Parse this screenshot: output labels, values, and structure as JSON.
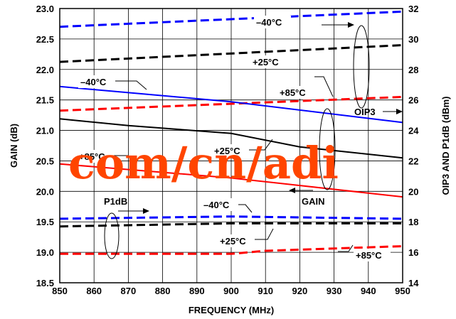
{
  "chart_data": {
    "type": "line",
    "xlabel": "FREQUENCY (MHz)",
    "ylabel": "GAIN (dB)",
    "y2label": "OIP3 AND P1dB (dBm)",
    "xlim": [
      850,
      950
    ],
    "ylim": [
      18.5,
      23.0
    ],
    "y2lim": [
      14,
      32
    ],
    "xticks": [
      "850",
      "860",
      "870",
      "880",
      "890",
      "900",
      "910",
      "920",
      "930",
      "940",
      "950"
    ],
    "yticks": [
      "18.5",
      "19.0",
      "19.5",
      "20.0",
      "20.5",
      "21.0",
      "21.5",
      "22.0",
      "22.5",
      "23.0"
    ],
    "y2ticks": [
      "14",
      "16",
      "18",
      "20",
      "22",
      "24",
      "26",
      "28",
      "30",
      "32"
    ],
    "grid": true,
    "colors": {
      "cold": "#0000ff",
      "room": "#000000",
      "hot": "#ff0000",
      "watermark": "#ff4500"
    },
    "series": [
      {
        "group": "OIP3",
        "axis": "right",
        "temp": "-40°C",
        "style": "dashed",
        "color": "#0000ff",
        "x": [
          850,
          950
        ],
        "values": [
          30.8,
          31.8
        ]
      },
      {
        "group": "OIP3",
        "axis": "right",
        "temp": "+25°C",
        "style": "dashed",
        "color": "#000000",
        "x": [
          850,
          950
        ],
        "values": [
          28.5,
          29.6
        ]
      },
      {
        "group": "OIP3",
        "axis": "right",
        "temp": "+85°C",
        "style": "dashed",
        "color": "#ff0000",
        "x": [
          850,
          950
        ],
        "values": [
          25.3,
          26.2
        ]
      },
      {
        "group": "GAIN",
        "axis": "left",
        "temp": "-40°C",
        "style": "solid",
        "color": "#0000ff",
        "x": [
          850,
          900,
          950
        ],
        "values": [
          21.72,
          21.47,
          21.13
        ]
      },
      {
        "group": "GAIN",
        "axis": "left",
        "temp": "+25°C",
        "style": "solid",
        "color": "#000000",
        "x": [
          850,
          870,
          900,
          920,
          950
        ],
        "values": [
          21.19,
          21.08,
          20.95,
          20.73,
          20.55
        ]
      },
      {
        "group": "GAIN",
        "axis": "left",
        "temp": "+85°C",
        "style": "solid",
        "color": "#ff0000",
        "x": [
          850,
          900,
          950
        ],
        "values": [
          20.45,
          20.22,
          19.91
        ]
      },
      {
        "group": "P1dB",
        "axis": "right",
        "temp": "-40°C",
        "style": "dashed",
        "color": "#0000ff",
        "x": [
          850,
          900,
          950
        ],
        "values": [
          18.2,
          18.35,
          18.2
        ]
      },
      {
        "group": "P1dB",
        "axis": "right",
        "temp": "+25°C",
        "style": "dashed",
        "color": "#000000",
        "x": [
          850,
          900,
          950
        ],
        "values": [
          17.7,
          17.9,
          17.9
        ]
      },
      {
        "group": "P1dB",
        "axis": "right",
        "temp": "+85°C",
        "style": "dashed",
        "color": "#ff0000",
        "x": [
          850,
          900,
          910,
          950
        ],
        "values": [
          15.9,
          15.9,
          16.1,
          16.4
        ]
      }
    ],
    "annotations": {
      "oip3_cold": "–40°C",
      "oip3_room": "+25°C",
      "oip3_hot": "+85°C",
      "oip3": "OIP3",
      "gain_cold": "–40°C",
      "gain_room": "+25°C",
      "gain_hot": "+85°C",
      "gain": "GAIN",
      "p1db": "P1dB",
      "p1db_cold": "–40°C",
      "p1db_room": "+25°C",
      "p1db_hot": "+85°C"
    },
    "watermark": "com/cn/adi"
  }
}
